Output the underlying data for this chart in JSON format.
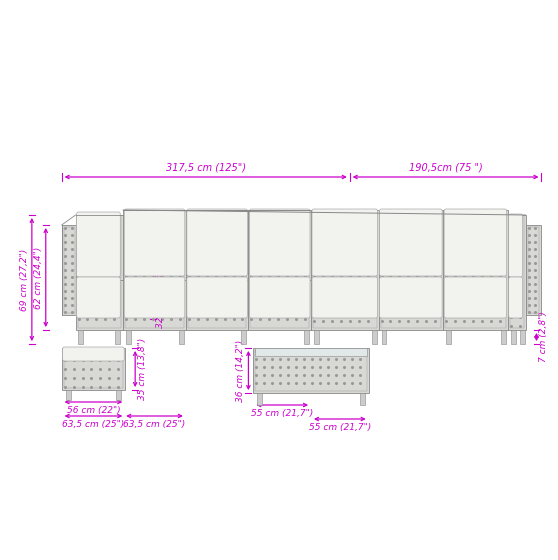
{
  "bg_color": "#ffffff",
  "dim_color": "#cc00cc",
  "sketch_color": "#888888",
  "rattan_color": "#aaaaaa",
  "cushion_color": "#f0f0ec",
  "measurements": {
    "total_width_left": "317,5 cm (125\")",
    "total_width_right": "190,5cm (75 \")",
    "height_69": "69 cm (27,2\")",
    "height_62": "62 cm (24,4\")",
    "depth_63_5_left": "63,5 cm (25\")",
    "width_56": "56 cm (22\")",
    "depth_63_5_right": "63,5 cm (25\")",
    "height_35": "35 cm (13,8\")",
    "height_32": "32 cm (12,6\")",
    "height_36": "36 cm (14,2\")",
    "width_55_left": "55 cm (21,7\")",
    "width_55_right": "55 cm (21,7\")",
    "height_7": "7 cm (2,8\")"
  }
}
